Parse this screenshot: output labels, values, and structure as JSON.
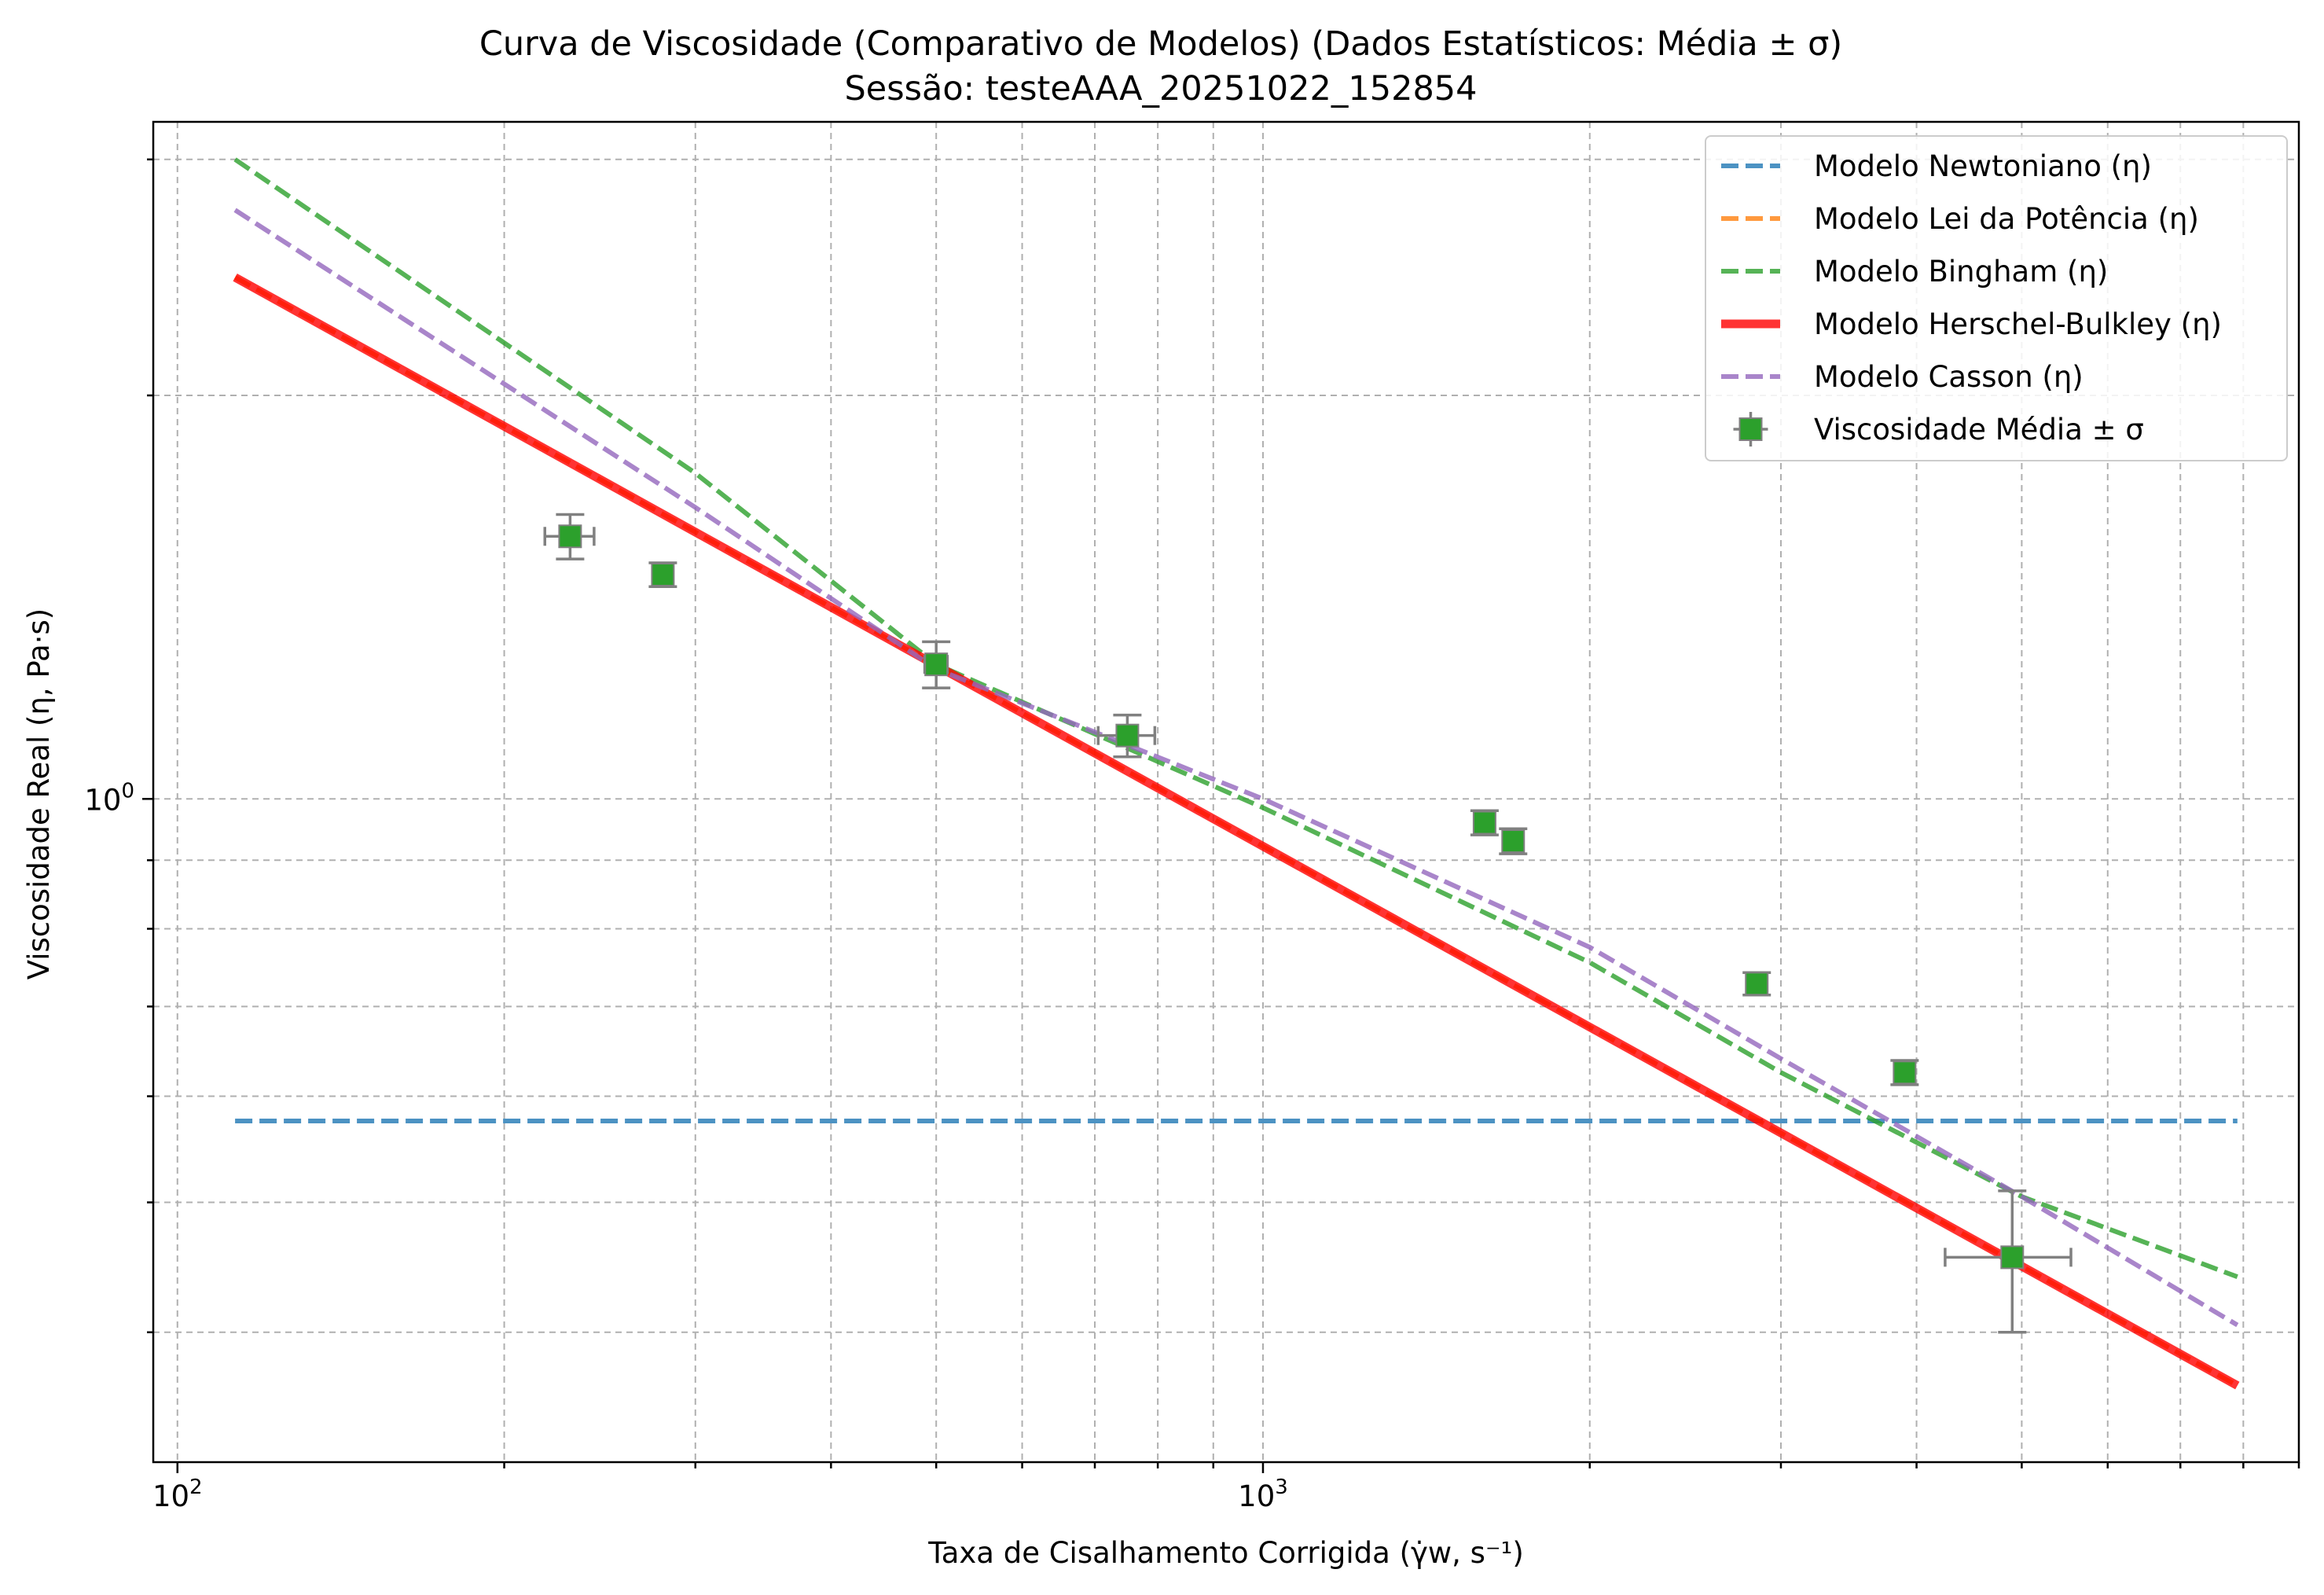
{
  "chart_data": {
    "type": "scatter",
    "title": "Curva de Viscosidade (Comparativo de Modelos) (Dados Estatísticos: Média ± σ)",
    "subtitle": "Sessão: testeAAA_20251022_152854",
    "xlabel": "Taxa de Cisalhamento Corrigida (γ̇w, s⁻¹)",
    "ylabel": "Viscosidade Real (η, Pa·s)",
    "xscale": "log",
    "yscale": "log",
    "xlim": [
      95,
      9000
    ],
    "ylim": [
      0.32,
      3.2
    ],
    "grid": true,
    "legend_position": "top-right",
    "x_ticks": [
      {
        "value": 100,
        "base": "10",
        "exp": "2"
      },
      {
        "value": 1000,
        "base": "10",
        "exp": "3"
      }
    ],
    "y_ticks": [
      {
        "value": 1.0,
        "base": "10",
        "exp": "0"
      }
    ],
    "series": [
      {
        "name": "Modelo Newtoniano (η)",
        "kind": "line",
        "color": "#1f77b4",
        "style": "dashed",
        "width": 6,
        "x": [
          113,
          7900
        ],
        "y": [
          0.575,
          0.575
        ]
      },
      {
        "name": "Modelo Lei da Potência (η)",
        "kind": "line",
        "color": "#ff7f0e",
        "style": "dashed",
        "width": 6,
        "x": [
          113,
          7900
        ],
        "y": [
          2.45,
          0.365
        ]
      },
      {
        "name": "Modelo Bingham (η)",
        "kind": "line",
        "color": "#2ca02c",
        "style": "dashed",
        "width": 6,
        "x": [
          113,
          300,
          500,
          1000,
          2000,
          3000,
          5000,
          7900
        ],
        "y": [
          3.0,
          1.75,
          1.26,
          0.985,
          0.755,
          0.625,
          0.505,
          0.44
        ]
      },
      {
        "name": "Modelo Herschel-Bulkley (η)",
        "kind": "line",
        "color": "#ff0000",
        "style": "solid",
        "width": 11,
        "x": [
          113,
          7900
        ],
        "y": [
          2.45,
          0.365
        ]
      },
      {
        "name": "Modelo Casson (η)",
        "kind": "line",
        "color": "#9467bd",
        "style": "dashed",
        "width": 6,
        "x": [
          113,
          300,
          500,
          1000,
          2000,
          3000,
          5000,
          7900
        ],
        "y": [
          2.75,
          1.65,
          1.25,
          1.0,
          0.775,
          0.64,
          0.505,
          0.405
        ]
      },
      {
        "name": "Viscosidade Média ± σ",
        "kind": "errorbar",
        "color": "#2ca02c",
        "ecolor": "#808080",
        "x": [
          230,
          280,
          500,
          750,
          1600,
          1700,
          2850,
          3900,
          4900
        ],
        "y": [
          1.57,
          1.47,
          1.26,
          1.115,
          0.96,
          0.93,
          0.728,
          0.625,
          0.455
        ],
        "xerr": [
          12,
          6,
          12,
          45,
          25,
          25,
          18,
          30,
          650
        ],
        "yerr": [
          0.06,
          0.03,
          0.05,
          0.04,
          0.02,
          0.02,
          0.014,
          0.013,
          0.055
        ]
      }
    ]
  }
}
